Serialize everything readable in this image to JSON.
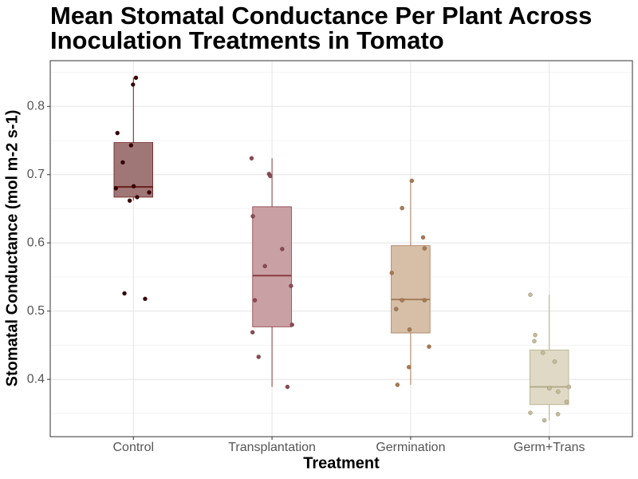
{
  "chart_data": {
    "type": "box",
    "title": [
      "Mean Stomatal Conductance Per Plant Across",
      "Inoculation Treatments in Tomato"
    ],
    "x_label": "Treatment",
    "y_label": "Stomatal Conductance (mol m-2 s-1)",
    "categories": [
      "Control",
      "Transplantation",
      "Germination",
      "Germ+Trans"
    ],
    "ylim": [
      0.316,
      0.867
    ],
    "yticks": [
      0.4,
      0.5,
      0.6,
      0.7,
      0.8
    ],
    "grid": true,
    "boxes": [
      {
        "whisker_low": 0.662,
        "q1": 0.667,
        "median": 0.682,
        "q3": 0.747,
        "whisker_high": 0.842,
        "fill": "#a07777",
        "edge": "#6b1d1d",
        "point_color": "#3a0000"
      },
      {
        "whisker_low": 0.389,
        "q1": 0.477,
        "median": 0.552,
        "q3": 0.653,
        "whisker_high": 0.724,
        "fill": "#c9a1a4",
        "edge": "#8b3a40",
        "point_color": "#8b4a52"
      },
      {
        "whisker_low": 0.392,
        "q1": 0.468,
        "median": 0.517,
        "q3": 0.596,
        "whisker_high": 0.691,
        "fill": "#d6bea7",
        "edge": "#a87c5a",
        "point_color": "#a87a50"
      },
      {
        "whisker_low": 0.34,
        "q1": 0.363,
        "median": 0.389,
        "q3": 0.443,
        "whisker_high": 0.524,
        "fill": "#dfd9c5",
        "edge": "#b3ae8a",
        "point_color": "#c4ba96"
      }
    ],
    "points": [
      [
        0.832,
        0.842,
        0.761,
        0.718,
        0.743,
        0.683,
        0.68,
        0.674,
        0.667,
        0.662,
        0.526,
        0.518
      ],
      [
        0.724,
        0.701,
        0.698,
        0.639,
        0.591,
        0.566,
        0.537,
        0.516,
        0.469,
        0.433,
        0.389,
        0.48
      ],
      [
        0.691,
        0.651,
        0.608,
        0.592,
        0.556,
        0.503,
        0.516,
        0.516,
        0.473,
        0.448,
        0.418,
        0.392
      ],
      [
        0.524,
        0.465,
        0.456,
        0.426,
        0.439,
        0.389,
        0.382,
        0.387,
        0.367,
        0.349,
        0.351,
        0.34
      ]
    ]
  }
}
